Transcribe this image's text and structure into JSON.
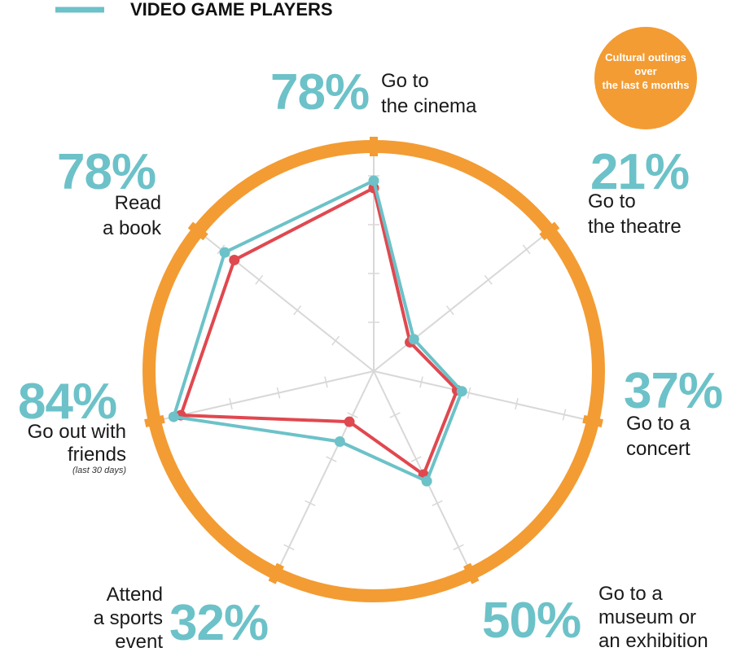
{
  "legend": {
    "series_label": "VIDEO GAME PLAYERS"
  },
  "badge": {
    "line1": "Cultural outings",
    "line2": "over",
    "line3": "the last 6 months"
  },
  "colors": {
    "ring": "#f39c33",
    "teal": "#6cc2c8",
    "red": "#e0484f",
    "spokes": "#d8d8d8"
  },
  "chart_data": {
    "type": "radar",
    "axis_max": 100,
    "categories": [
      {
        "percent": "78%",
        "label_lines": [
          "Go to",
          "the cinema"
        ],
        "note": ""
      },
      {
        "percent": "21%",
        "label_lines": [
          "Go to",
          "the theatre"
        ],
        "note": ""
      },
      {
        "percent": "37%",
        "label_lines": [
          "Go to a",
          "concert"
        ],
        "note": ""
      },
      {
        "percent": "50%",
        "label_lines": [
          "Go to a",
          "museum or",
          "an exhibition"
        ],
        "note": ""
      },
      {
        "percent": "32%",
        "label_lines": [
          "Attend",
          "a sports",
          "event"
        ],
        "note": ""
      },
      {
        "percent": "84%",
        "label_lines": [
          "Go out with",
          "friends"
        ],
        "note": "(last 30 days)"
      },
      {
        "percent": "78%",
        "label_lines": [
          "Read",
          "a book"
        ],
        "note": ""
      }
    ],
    "series": [
      {
        "name": "VIDEO GAME PLAYERS",
        "values": [
          78,
          21,
          37,
          50,
          32,
          84,
          78
        ]
      },
      {
        "values": [
          75,
          19,
          35,
          47,
          23,
          81,
          73
        ]
      }
    ]
  }
}
